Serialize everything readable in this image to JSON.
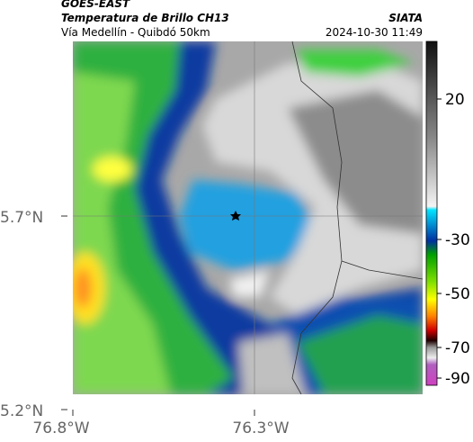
{
  "header": {
    "source": "GOES-EAST",
    "product": "Temperatura de Brillo CH13",
    "region": "Vía Medellín - Quibdó 50km",
    "agency": "SIATA",
    "timestamp": "2024-10-30 11:49"
  },
  "map": {
    "lat_labels": [
      "5.7°N",
      "5.2°N"
    ],
    "lon_labels": [
      "76.8°W",
      "76.3°W"
    ]
  },
  "colorbar": {
    "ticks": [
      20,
      -30,
      -50,
      -70,
      -90
    ]
  }
}
